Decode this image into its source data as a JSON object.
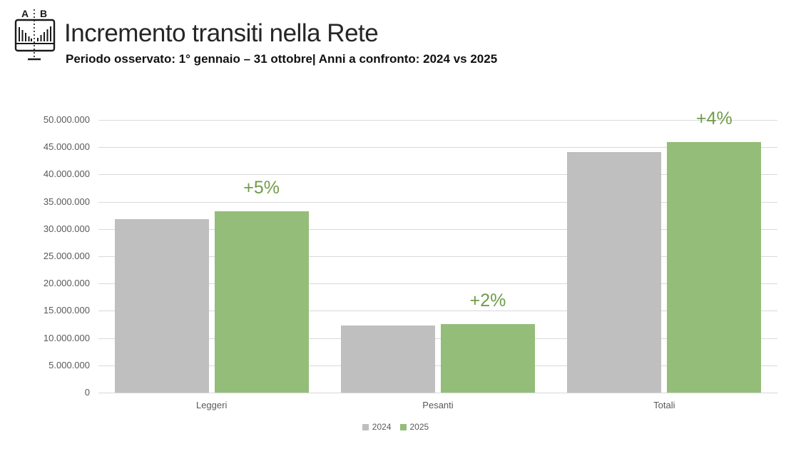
{
  "header": {
    "title": "Incremento transiti nella Rete",
    "subtitle": "Periodo osservato: 1° gennaio – 31 ottobre| Anni a confronto: 2024 vs 2025",
    "icon": "ab-comparison-chart-icon",
    "icon_labels": {
      "left": "A",
      "right": "B"
    }
  },
  "chart_data": {
    "type": "bar",
    "categories": [
      "Leggeri",
      "Pesanti",
      "Totali"
    ],
    "series": [
      {
        "name": "2024",
        "color": "#bfbfbf",
        "values": [
          31800000,
          12350000,
          44150000
        ]
      },
      {
        "name": "2025",
        "color": "#94bd79",
        "values": [
          33300000,
          12600000,
          45900000
        ]
      }
    ],
    "annotations": [
      "+5%",
      "+2%",
      "+4%"
    ],
    "annotation_color": "#6f9c49",
    "ylim": [
      0,
      50000000
    ],
    "ytick_step": 5000000,
    "ytick_labels": [
      "0",
      "5.000.000",
      "10.000.000",
      "15.000.000",
      "20.000.000",
      "25.000.000",
      "30.000.000",
      "35.000.000",
      "40.000.000",
      "45.000.000",
      "50.000.000"
    ],
    "xlabel": "",
    "ylabel": "",
    "grid": true,
    "gridline_color": "#d9d9d9",
    "legend_position": "bottom"
  }
}
